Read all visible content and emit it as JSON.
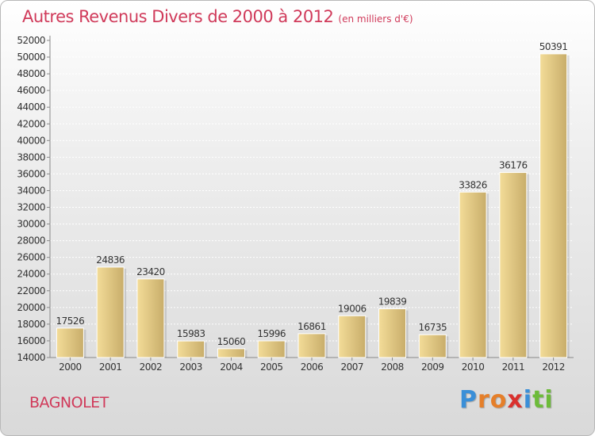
{
  "title": "Autres Revenus Divers de 2000 à 2012",
  "subtitle": "(en milliers d'€)",
  "city": "BAGNOLET",
  "logo": {
    "letters": [
      "P",
      "r",
      "o",
      "x",
      "i",
      "t",
      "i"
    ],
    "colors": [
      "#3a8fd8",
      "#e57f2a",
      "#e57f2a",
      "#d9312e",
      "#3a8fd8",
      "#6dbb3a",
      "#6dbb3a"
    ]
  },
  "colors": {
    "accent": "#d03a5a",
    "bar_light": "#f3dc98",
    "bar_dark": "#c8ad6a"
  },
  "chart_data": {
    "type": "bar",
    "categories": [
      "2000",
      "2001",
      "2002",
      "2003",
      "2004",
      "2005",
      "2006",
      "2007",
      "2008",
      "2009",
      "2010",
      "2011",
      "2012"
    ],
    "values": [
      17526,
      24836,
      23420,
      15983,
      15060,
      15996,
      16861,
      19006,
      19839,
      16735,
      33826,
      36176,
      50391
    ],
    "data_labels": [
      "17526",
      "24836",
      "23420",
      "15983",
      "15060",
      "15996",
      "16861",
      "19006",
      "19839",
      "16735",
      "33826",
      "36176",
      "50391"
    ],
    "y_ticks": [
      "14000",
      "16000",
      "18000",
      "20000",
      "22000",
      "24000",
      "26000",
      "28000",
      "30000",
      "32000",
      "34000",
      "36000",
      "38000",
      "40000",
      "42000",
      "44000",
      "46000",
      "48000",
      "50000",
      "52000"
    ],
    "ylim": [
      14000,
      52000
    ],
    "grid": true
  }
}
